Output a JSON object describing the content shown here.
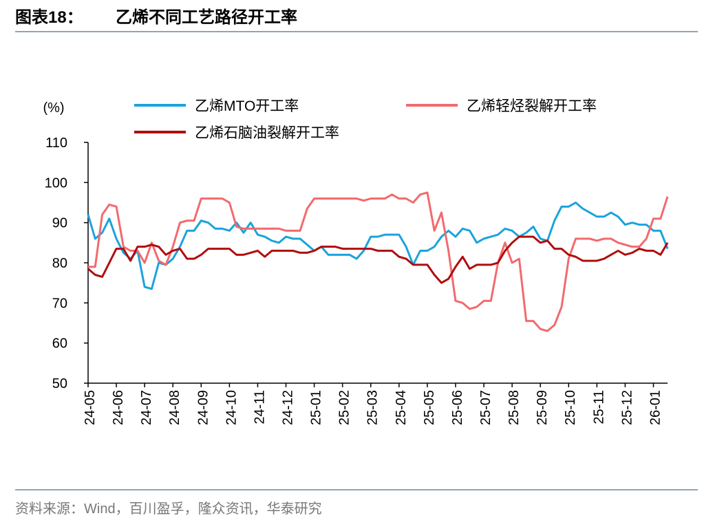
{
  "chart_data": {
    "type": "line",
    "figure_label": "图表18：",
    "title": "乙烯不同工艺路径开工率",
    "y_label": "(%)",
    "source": "资料来源：Wind，百川盈孚，隆众资讯，华泰研究",
    "xlim": [
      0,
      20.5
    ],
    "xticks": [
      {
        "value": 0,
        "label": "24-05"
      },
      {
        "value": 1,
        "label": "24-06"
      },
      {
        "value": 2,
        "label": "24-07"
      },
      {
        "value": 3,
        "label": "24-08"
      },
      {
        "value": 4,
        "label": "24-09"
      },
      {
        "value": 5,
        "label": "24-10"
      },
      {
        "value": 6,
        "label": "24-11"
      },
      {
        "value": 7,
        "label": "24-12"
      },
      {
        "value": 8,
        "label": "25-01"
      },
      {
        "value": 9,
        "label": "25-02"
      },
      {
        "value": 10,
        "label": "25-03"
      },
      {
        "value": 11,
        "label": "25-04"
      },
      {
        "value": 12,
        "label": "25-05"
      },
      {
        "value": 13,
        "label": "25-06"
      },
      {
        "value": 14,
        "label": "25-07"
      },
      {
        "value": 15,
        "label": "25-08"
      },
      {
        "value": 16,
        "label": "25-09"
      },
      {
        "value": 17,
        "label": "25-10"
      },
      {
        "value": 18,
        "label": "25-11"
      },
      {
        "value": 19,
        "label": "25-12"
      },
      {
        "value": 20,
        "label": "26-01"
      }
    ],
    "ylim": [
      50,
      110
    ],
    "yticks": [
      50,
      60,
      70,
      80,
      90,
      100,
      110
    ],
    "x": [
      0,
      0.25,
      0.5,
      0.75,
      1,
      1.25,
      1.5,
      1.75,
      2,
      2.25,
      2.5,
      2.75,
      3,
      3.25,
      3.5,
      3.75,
      4,
      4.25,
      4.5,
      4.75,
      5,
      5.25,
      5.5,
      5.75,
      6,
      6.25,
      6.5,
      6.75,
      7,
      7.25,
      7.5,
      7.75,
      8,
      8.25,
      8.5,
      8.75,
      9,
      9.25,
      9.5,
      9.75,
      10,
      10.25,
      10.5,
      10.75,
      11,
      11.25,
      11.5,
      11.75,
      12,
      12.25,
      12.5,
      12.75,
      13,
      13.25,
      13.5,
      13.75,
      14,
      14.25,
      14.5,
      14.75,
      15,
      15.25,
      15.5,
      15.75,
      16,
      16.25,
      16.5,
      16.75,
      17,
      17.25,
      17.5,
      17.75,
      18,
      18.25,
      18.5,
      18.75,
      19,
      19.25,
      19.5,
      19.75,
      20,
      20.25,
      20.5
    ],
    "series": [
      {
        "name": "乙烯MTO开工率",
        "color": "#1aa3dc",
        "values": [
          92,
          86,
          87.5,
          91,
          86,
          82.5,
          81,
          83,
          74,
          73.5,
          80,
          79.5,
          81,
          84,
          88,
          88,
          90.5,
          90,
          88.5,
          88.5,
          88,
          90,
          87.5,
          90,
          87,
          86.5,
          85.5,
          85,
          86.5,
          86,
          86,
          84.5,
          83,
          84,
          82,
          82,
          82,
          82,
          81,
          83,
          86.5,
          86.5,
          87,
          87,
          87,
          84,
          79.5,
          83,
          83,
          84,
          86.5,
          88,
          86.5,
          88.5,
          88,
          85,
          86,
          86.5,
          87,
          88.5,
          88,
          86.5,
          87.5,
          89,
          86,
          85.5,
          90.5,
          94,
          94,
          95,
          93.5,
          92.5,
          91.5,
          91.5,
          92.5,
          91.5,
          89.5,
          90,
          89.5,
          89.5,
          88,
          88,
          83.5
        ]
      },
      {
        "name": "乙烯轻烃裂解开工率",
        "color": "#f26a6d",
        "values": [
          79,
          79,
          92,
          94.5,
          94,
          84,
          83,
          83,
          80,
          85,
          80.5,
          79.5,
          84,
          90,
          90.5,
          90.5,
          96,
          96,
          96,
          96,
          95,
          89,
          88.5,
          88.5,
          88.5,
          88.5,
          88.5,
          88.5,
          88,
          88,
          88,
          93.5,
          96,
          96,
          96,
          96,
          96,
          96,
          96,
          95.5,
          96,
          96,
          96,
          97,
          96,
          96,
          95,
          97,
          97.5,
          88,
          92.5,
          83,
          70.5,
          70,
          68.5,
          69,
          70.5,
          70.5,
          80,
          85,
          80,
          81,
          65.5,
          65.5,
          63.5,
          63,
          64.5,
          69,
          81,
          86,
          86,
          86,
          85.5,
          86,
          86,
          85,
          84.5,
          84,
          84,
          86,
          91,
          91,
          96.5
        ]
      },
      {
        "name": "乙烯石脑油裂解开工率",
        "color": "#b00d0d",
        "values": [
          78.5,
          77,
          76.5,
          80,
          83.5,
          83.5,
          80.5,
          84,
          84,
          84.5,
          84,
          82,
          83,
          83.5,
          81,
          81,
          82,
          83.5,
          83.5,
          83.5,
          83.5,
          82,
          82,
          82.5,
          83,
          81.5,
          83,
          83,
          83,
          83,
          82.5,
          82.5,
          83,
          84,
          84,
          84,
          83.5,
          83.5,
          83.5,
          83.5,
          83.5,
          83,
          83,
          83,
          81.5,
          81,
          79.5,
          79.5,
          79.5,
          77,
          75,
          76,
          79,
          81.5,
          78.5,
          79.5,
          79.5,
          79.5,
          80,
          83,
          85,
          86.5,
          86.5,
          86.5,
          85,
          85.5,
          83.5,
          83.5,
          82,
          81.5,
          80.5,
          80.5,
          80.5,
          81,
          82,
          83,
          82,
          82.5,
          83.5,
          83,
          83,
          82,
          85
        ]
      }
    ]
  }
}
